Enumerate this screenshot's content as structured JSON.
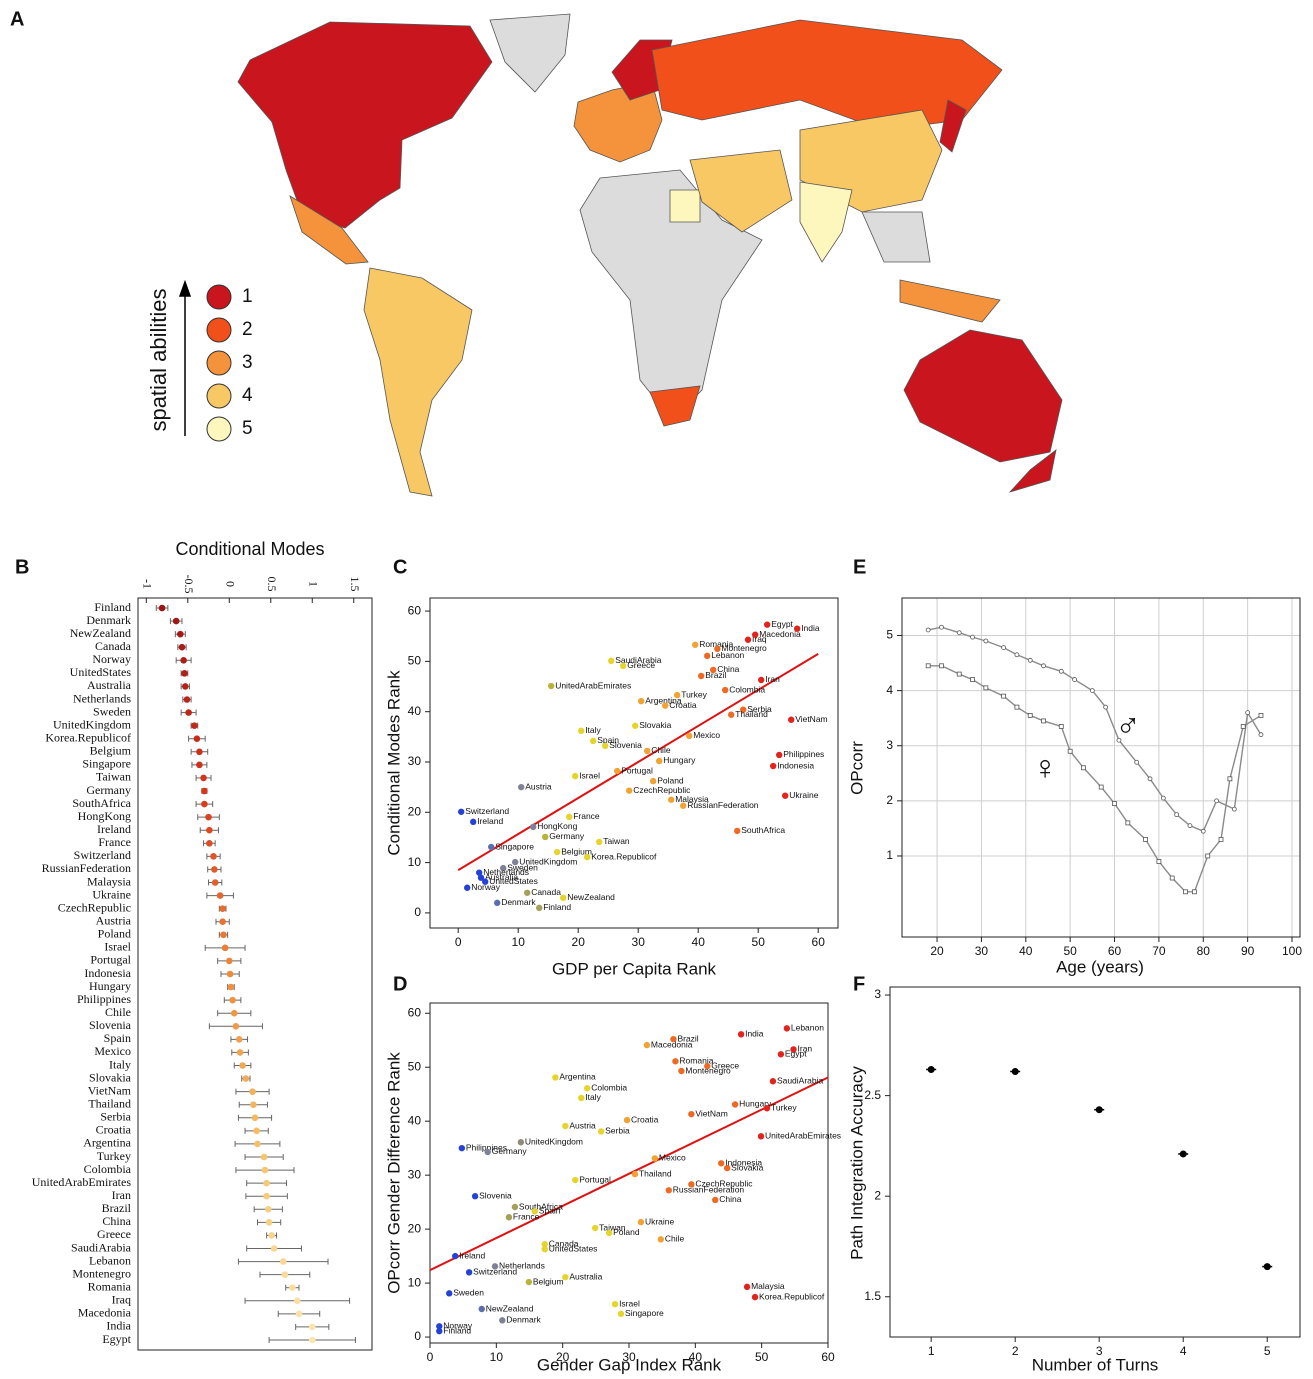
{
  "chart_data": [
    {
      "type": "map",
      "panel_label": "A",
      "legend_title": "spatial abilities",
      "legend_levels": [
        1,
        2,
        3,
        4,
        5
      ],
      "legend_colors": [
        "#c8151e",
        "#f2501a",
        "#f4933c",
        "#f8c865",
        "#fdf6bd"
      ]
    },
    {
      "type": "dot",
      "panel_label": "B",
      "title": "Conditional Modes",
      "categories": [
        "Finland",
        "Denmark",
        "NewZealand",
        "Canada",
        "Norway",
        "UnitedStates",
        "Australia",
        "Netherlands",
        "Sweden",
        "UnitedKingdom",
        "Korea.Republicof",
        "Belgium",
        "Singapore",
        "Taiwan",
        "Germany",
        "SouthAfrica",
        "HongKong",
        "Ireland",
        "France",
        "Switzerland",
        "RussianFederation",
        "Malaysia",
        "Ukraine",
        "CzechRepublic",
        "Austria",
        "Poland",
        "Israel",
        "Portugal",
        "Indonesia",
        "Hungary",
        "Philippines",
        "Chile",
        "Slovenia",
        "Spain",
        "Mexico",
        "Italy",
        "Slovakia",
        "VietNam",
        "Thailand",
        "Serbia",
        "Croatia",
        "Argentina",
        "Turkey",
        "Colombia",
        "UnitedArabEmirates",
        "Iran",
        "Brazil",
        "China",
        "Greece",
        "SaudiArabia",
        "Lebanon",
        "Montenegro",
        "Romania",
        "Iraq",
        "Macedonia",
        "India",
        "Egypt"
      ],
      "values": [
        -0.81,
        -0.64,
        -0.59,
        -0.57,
        -0.55,
        -0.54,
        -0.53,
        -0.51,
        -0.49,
        -0.42,
        -0.39,
        -0.36,
        -0.36,
        -0.31,
        -0.3,
        -0.3,
        -0.25,
        -0.24,
        -0.24,
        -0.19,
        -0.18,
        -0.17,
        -0.11,
        -0.08,
        -0.08,
        -0.07,
        -0.05,
        0,
        0.01,
        0.02,
        0.04,
        0.06,
        0.08,
        0.12,
        0.13,
        0.16,
        0.2,
        0.28,
        0.29,
        0.31,
        0.33,
        0.34,
        0.42,
        0.43,
        0.45,
        0.45,
        0.47,
        0.48,
        0.51,
        0.54,
        0.65,
        0.67,
        0.76,
        0.82,
        0.84,
        1.0,
        1.0
      ],
      "errors": [
        0.07,
        0.07,
        0.06,
        0.05,
        0.09,
        0.04,
        0.05,
        0.05,
        0.09,
        0.04,
        0.1,
        0.1,
        0.09,
        0.09,
        0.03,
        0.1,
        0.13,
        0.11,
        0.07,
        0.08,
        0.08,
        0.08,
        0.16,
        0.04,
        0.08,
        0.05,
        0.24,
        0.14,
        0.11,
        0.04,
        0.1,
        0.2,
        0.32,
        0.1,
        0.1,
        0.1,
        0.05,
        0.2,
        0.17,
        0.2,
        0.14,
        0.27,
        0.23,
        0.35,
        0.24,
        0.25,
        0.17,
        0.14,
        0.06,
        0.33,
        0.54,
        0.3,
        0.08,
        0.63,
        0.25,
        0.2,
        0.52
      ],
      "color_scale": [
        "#9c1414",
        "#d8361c",
        "#ee8a3a",
        "#f6c46c",
        "#fbe6b0"
      ],
      "xlim": [
        -1.1,
        1.72
      ],
      "xticks": [
        -1,
        -0.5,
        0,
        0.5,
        1,
        1.5
      ]
    },
    {
      "type": "scatter",
      "panel_label": "C",
      "xlabel": "GDP per Capita Rank",
      "ylabel": "Conditional Modes Rank",
      "labels": [
        "Egypt",
        "India",
        "Iraq",
        "Macedonia",
        "Romania",
        "Montenegro",
        "Lebanon",
        "SaudiArabia",
        "Greece",
        "China",
        "Brazil",
        "Iran",
        "UnitedArabEmirates",
        "Colombia",
        "Turkey",
        "Argentina",
        "Croatia",
        "Serbia",
        "Thailand",
        "VietNam",
        "Slovakia",
        "Italy",
        "Mexico",
        "Spain",
        "Slovenia",
        "Chile",
        "Philippines",
        "Hungary",
        "Indonesia",
        "Portugal",
        "Israel",
        "Poland",
        "Austria",
        "CzechRepublic",
        "Ukraine",
        "Malaysia",
        "RussianFederation",
        "Switzerland",
        "France",
        "SouthAfrica",
        "Ireland",
        "HongKong",
        "Germany",
        "Taiwan",
        "Singapore",
        "Belgium",
        "Korea.Republicof",
        "UnitedKingdom",
        "Sweden",
        "Netherlands",
        "Australia",
        "UnitedStates",
        "Norway",
        "Canada",
        "NewZealand",
        "Denmark",
        "Finland"
      ],
      "x": [
        51.5,
        56.5,
        48.3,
        49.5,
        39.5,
        43.2,
        41.5,
        25.5,
        27.5,
        42.5,
        40.5,
        50.5,
        15.5,
        44.5,
        36.5,
        30.5,
        34.5,
        47.5,
        45.5,
        55.5,
        29.5,
        20.5,
        38.5,
        22.5,
        24.5,
        31.5,
        53.5,
        33.5,
        52.5,
        26.5,
        19.5,
        32.5,
        10.5,
        28.5,
        54.5,
        35.5,
        37.5,
        0.5,
        18.5,
        46.5,
        2.5,
        12.5,
        14.5,
        23.5,
        5.5,
        16.5,
        21.5,
        9.5,
        7.5,
        3.5,
        3.8,
        4.5,
        1.5,
        11.5,
        17.5,
        6.5,
        13.5
      ],
      "y": [
        57.3,
        56.5,
        54.3,
        55.3,
        53.3,
        52.5,
        51.1,
        50.1,
        49.1,
        48.3,
        47.1,
        46.3,
        45.1,
        44.3,
        43.3,
        42.1,
        41.2,
        40.4,
        39.4,
        38.4,
        37.2,
        36.2,
        35.2,
        34.2,
        33.2,
        32.2,
        31.4,
        30.2,
        29.2,
        28.2,
        27.2,
        26.2,
        25.0,
        24.3,
        23.3,
        22.5,
        21.3,
        20.1,
        19.1,
        16.3,
        18.1,
        17.1,
        15.1,
        14.1,
        13.1,
        12.1,
        11.1,
        10.1,
        8.9,
        8.0,
        7.0,
        6.2,
        5.0,
        4.0,
        3.0,
        2.0,
        1.0
      ],
      "colors": [
        "#e2241c",
        "#e2241c",
        "#e2241c",
        "#e2241c",
        "#f2a232",
        "#ee6a22",
        "#ee6a22",
        "#e6d42a",
        "#e6d42a",
        "#ee6a22",
        "#ee6a22",
        "#e2241c",
        "#b8b43a",
        "#ee6a22",
        "#f2a232",
        "#f2a232",
        "#f2a232",
        "#ee6a22",
        "#ee6a22",
        "#e2241c",
        "#e6d42a",
        "#e6d42a",
        "#f2a232",
        "#e6d42a",
        "#e6d42a",
        "#f2a232",
        "#e2241c",
        "#f2a232",
        "#e2241c",
        "#f2a232",
        "#e6d42a",
        "#f2a232",
        "#7f8296",
        "#f2a232",
        "#e2241c",
        "#f2a232",
        "#f2a232",
        "#2442d6",
        "#e6d42a",
        "#ee6a22",
        "#2442d6",
        "#7f8296",
        "#b8b43a",
        "#e6d42a",
        "#5a6fb0",
        "#e6d42a",
        "#e6d42a",
        "#7f8296",
        "#7f8296",
        "#2442d6",
        "#2442d6",
        "#2442d6",
        "#2442d6",
        "#a4a05a",
        "#e6d42a",
        "#5a6fb0",
        "#a4a05a"
      ],
      "trend_line": {
        "x": [
          0,
          60
        ],
        "y": [
          8.5,
          51.5
        ],
        "color": "#e01010"
      },
      "xlim": [
        -4.7,
        63.3
      ],
      "ylim": [
        -3,
        62.6
      ],
      "xticks": [
        0,
        10,
        20,
        30,
        40,
        50,
        60
      ],
      "yticks": [
        0,
        10,
        20,
        30,
        40,
        50,
        60
      ]
    },
    {
      "type": "scatter",
      "panel_label": "D",
      "xlabel": "Gender Gap Index Rank",
      "ylabel": "OPcorr Gender Difference Rank",
      "labels": [
        "Lebanon",
        "India",
        "Brazil",
        "Macedonia",
        "Iran",
        "Egypt",
        "Romania",
        "Greece",
        "Montenegro",
        "Argentina",
        "SaudiArabia",
        "Colombia",
        "Italy",
        "Hungary",
        "Turkey",
        "VietNam",
        "Croatia",
        "Austria",
        "Serbia",
        "UnitedArabEmirates",
        "UnitedKingdom",
        "Philippines",
        "Germany",
        "Mexico",
        "Indonesia",
        "Slovakia",
        "Thailand",
        "Portugal",
        "CzechRepublic",
        "RussianFederation",
        "Slovenia",
        "China",
        "SouthAfrica",
        "Spain",
        "France",
        "Ukraine",
        "Taiwan",
        "Poland",
        "Chile",
        "Canada",
        "UnitedStates",
        "Ireland",
        "Netherlands",
        "Switzerland",
        "Australia",
        "Belgium",
        "Malaysia",
        "Korea.Republicof",
        "Sweden",
        "Israel",
        "NewZealand",
        "Singapore",
        "Denmark",
        "Norway",
        "Finland"
      ],
      "x": [
        53.8,
        46.9,
        36.7,
        32.7,
        54.8,
        52.9,
        37.0,
        41.8,
        37.9,
        18.9,
        51.7,
        23.7,
        22.8,
        46.0,
        50.8,
        39.4,
        29.7,
        20.4,
        25.8,
        49.9,
        13.7,
        4.8,
        8.7,
        33.9,
        43.9,
        44.8,
        30.9,
        21.9,
        39.4,
        36.0,
        6.8,
        43.0,
        12.8,
        15.8,
        11.9,
        31.8,
        24.9,
        27.0,
        34.8,
        17.3,
        17.3,
        3.8,
        9.8,
        5.9,
        20.4,
        14.9,
        47.8,
        49.0,
        2.9,
        27.9,
        7.8,
        28.8,
        10.9,
        1.4,
        1.4
      ],
      "y": [
        57.2,
        56.1,
        55.2,
        54.1,
        53.3,
        52.4,
        51.1,
        50.2,
        49.3,
        48.1,
        47.4,
        46.1,
        44.3,
        43.1,
        42.4,
        41.3,
        40.2,
        39.1,
        38.1,
        37.2,
        36.1,
        35.0,
        34.3,
        33.1,
        32.2,
        31.3,
        30.2,
        29.1,
        28.3,
        27.2,
        26.1,
        25.4,
        24.1,
        23.3,
        22.2,
        21.3,
        20.2,
        19.3,
        18.1,
        17.2,
        16.3,
        15.0,
        13.1,
        12.0,
        11.1,
        10.2,
        9.3,
        7.4,
        8.1,
        6.1,
        5.2,
        4.3,
        3.1,
        2.0,
        1.1
      ],
      "colors": [
        "#e2241c",
        "#e2241c",
        "#ee6a22",
        "#f2a232",
        "#e2241c",
        "#e2241c",
        "#ee6a22",
        "#ee6a22",
        "#ee6a22",
        "#e6d42a",
        "#e2241c",
        "#e6d42a",
        "#e6d42a",
        "#ee6a22",
        "#e2241c",
        "#ee6a22",
        "#f2a232",
        "#e6d42a",
        "#e6d42a",
        "#e2241c",
        "#8c8c78",
        "#2442d6",
        "#7f8296",
        "#f2a232",
        "#ee6a22",
        "#ee6a22",
        "#f2a232",
        "#e6d42a",
        "#ee6a22",
        "#ee6a22",
        "#2442d6",
        "#ee6a22",
        "#a4a05a",
        "#e6d42a",
        "#a4a05a",
        "#f2a232",
        "#e6d42a",
        "#e6d42a",
        "#f2a232",
        "#e6d42a",
        "#e6d42a",
        "#2442d6",
        "#7f8296",
        "#2442d6",
        "#e6d42a",
        "#b8b43a",
        "#e2241c",
        "#e2241c",
        "#2442d6",
        "#e6d42a",
        "#5a6fb0",
        "#e6d42a",
        "#7f8296",
        "#2442d6",
        "#2442d6"
      ],
      "trend_line": {
        "x": [
          0,
          60
        ],
        "y": [
          12.4,
          48.1
        ],
        "color": "#e01010"
      },
      "xlim": [
        0,
        60
      ],
      "ylim": [
        -1.1,
        61.9
      ],
      "xticks": [
        0,
        10,
        20,
        30,
        40,
        50,
        60
      ],
      "yticks": [
        0,
        10,
        20,
        30,
        40,
        50,
        60
      ]
    },
    {
      "type": "line",
      "panel_label": "E",
      "xlabel": "Age (years)",
      "ylabel": "OPcorr",
      "grid": true,
      "series": [
        {
          "name": "♂",
          "color": "#8a8a8a",
          "marker": "circle",
          "x": [
            18,
            21,
            25,
            28,
            31,
            35,
            38,
            41,
            44,
            48,
            51,
            55,
            58,
            61,
            65,
            68,
            71,
            74,
            77,
            80,
            83,
            87,
            90,
            93
          ],
          "values": [
            5.1,
            5.15,
            5.05,
            4.97,
            4.9,
            4.78,
            4.65,
            4.55,
            4.45,
            4.35,
            4.2,
            4.0,
            3.7,
            3.1,
            2.7,
            2.4,
            2.05,
            1.75,
            1.55,
            1.45,
            2.0,
            1.85,
            3.6,
            3.2
          ]
        },
        {
          "name": "♀",
          "color": "#8a8a8a",
          "marker": "square",
          "x": [
            18,
            21,
            25,
            28,
            31,
            35,
            38,
            41,
            44,
            48,
            50,
            53,
            57,
            60,
            63,
            67,
            70,
            73,
            76,
            78,
            81,
            84,
            86,
            89,
            93
          ],
          "values": [
            4.45,
            4.45,
            4.3,
            4.2,
            4.05,
            3.9,
            3.7,
            3.55,
            3.45,
            3.35,
            2.9,
            2.6,
            2.25,
            1.95,
            1.6,
            1.3,
            0.9,
            0.6,
            0.35,
            0.35,
            1.0,
            1.3,
            2.4,
            3.35,
            3.55
          ]
        }
      ],
      "xlim": [
        12.1,
        101.8
      ],
      "ylim": [
        -0.47,
        5.68
      ],
      "xticks": [
        20,
        30,
        40,
        50,
        60,
        70,
        80,
        90,
        100
      ],
      "yticks": [
        1,
        2,
        3,
        4,
        5
      ]
    },
    {
      "type": "errorbar",
      "panel_label": "F",
      "xlabel": "Number of Turns",
      "ylabel": "Path Integration Accuracy",
      "x": [
        1,
        2,
        3,
        4,
        5
      ],
      "values": [
        2.63,
        2.62,
        2.43,
        2.21,
        1.65
      ],
      "errors": [
        0.01,
        0.01,
        0.01,
        0.01,
        0.01
      ],
      "color": "#000000",
      "xlim": [
        0.51,
        5.39
      ],
      "ylim": [
        1.3,
        3.04
      ],
      "xticks": [
        1,
        2,
        3,
        4,
        5
      ],
      "yticks": [
        1.5,
        2,
        2.5,
        3
      ]
    }
  ]
}
